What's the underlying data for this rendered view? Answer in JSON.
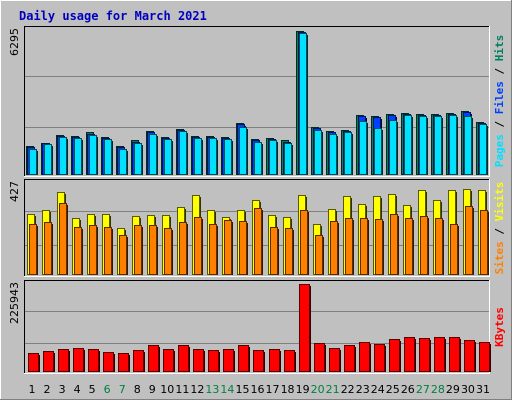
{
  "title": "Daily usage for March 2021",
  "colors": {
    "background": "#c0c0c0",
    "title": "#0000c0",
    "grid": "#808080",
    "hits": "#00805c",
    "files": "#0040ff",
    "pages": "#00e0ff",
    "visits": "#ffff00",
    "sites": "#ff8000",
    "kbytes": "#ff0000",
    "weekday_label": "#000000",
    "weekend_label": "#008040"
  },
  "chart_data": [
    {
      "type": "bar",
      "panel": "top",
      "max_label": "6295",
      "axis_label": [
        {
          "text": "Pages",
          "color": "#00e0ff"
        },
        {
          "text": " / ",
          "color": "#000000"
        },
        {
          "text": "Files",
          "color": "#0040ff"
        },
        {
          "text": " / ",
          "color": "#000000"
        },
        {
          "text": "Hits",
          "color": "#00805c"
        }
      ],
      "categories": [
        "1",
        "2",
        "3",
        "4",
        "5",
        "6",
        "7",
        "8",
        "9",
        "10",
        "11",
        "12",
        "13",
        "14",
        "15",
        "16",
        "17",
        "18",
        "19",
        "20",
        "21",
        "22",
        "23",
        "24",
        "25",
        "26",
        "27",
        "28",
        "29",
        "30",
        "31"
      ],
      "ylim": [
        0,
        6295
      ],
      "series": [
        {
          "name": "Hits",
          "values": [
            1250,
            1400,
            1750,
            1700,
            1850,
            1650,
            1250,
            1500,
            1900,
            1650,
            2000,
            1700,
            1700,
            1650,
            2250,
            1550,
            1600,
            1500,
            6250,
            2100,
            1900,
            1950,
            2600,
            2550,
            2650,
            2700,
            2650,
            2650,
            2700,
            2800,
            2300
          ]
        },
        {
          "name": "Files",
          "values": [
            1200,
            1370,
            1700,
            1650,
            1800,
            1600,
            1200,
            1450,
            1850,
            1600,
            1950,
            1650,
            1650,
            1600,
            2200,
            1500,
            1550,
            1450,
            6200,
            2050,
            1850,
            1900,
            2550,
            2500,
            2600,
            2650,
            2600,
            2600,
            2650,
            2750,
            2250
          ]
        },
        {
          "name": "Pages",
          "values": [
            1150,
            1330,
            1650,
            1600,
            1750,
            1550,
            1150,
            1400,
            1800,
            1550,
            1900,
            1600,
            1600,
            1550,
            2100,
            1450,
            1500,
            1400,
            6150,
            1950,
            1800,
            1850,
            2350,
            2050,
            2400,
            2600,
            2550,
            2550,
            2600,
            2550,
            2200
          ]
        }
      ]
    },
    {
      "type": "bar",
      "panel": "middle",
      "max_label": "427",
      "axis_label": [
        {
          "text": "Sites",
          "color": "#ff8000"
        },
        {
          "text": " / ",
          "color": "#000000"
        },
        {
          "text": "Visits",
          "color": "#ffff00"
        }
      ],
      "categories": [
        "1",
        "2",
        "3",
        "4",
        "5",
        "6",
        "7",
        "8",
        "9",
        "10",
        "11",
        "12",
        "13",
        "14",
        "15",
        "16",
        "17",
        "18",
        "19",
        "20",
        "21",
        "22",
        "23",
        "24",
        "25",
        "26",
        "27",
        "28",
        "29",
        "30",
        "31"
      ],
      "ylim": [
        0,
        427
      ],
      "series": [
        {
          "name": "Visits",
          "values": [
            283,
            300,
            385,
            265,
            283,
            283,
            220,
            275,
            280,
            280,
            317,
            370,
            300,
            270,
            300,
            348,
            280,
            270,
            370,
            238,
            305,
            368,
            330,
            368,
            375,
            325,
            395,
            350,
            395,
            400,
            395
          ]
        },
        {
          "name": "Sites",
          "values": [
            235,
            245,
            335,
            225,
            230,
            225,
            185,
            230,
            230,
            220,
            245,
            270,
            235,
            255,
            250,
            310,
            225,
            220,
            300,
            185,
            250,
            265,
            265,
            260,
            285,
            265,
            275,
            265,
            235,
            318,
            303
          ]
        }
      ]
    },
    {
      "type": "bar",
      "panel": "bottom",
      "max_label": "225943",
      "axis_label": [
        {
          "text": "KBytes",
          "color": "#ff0000"
        }
      ],
      "categories": [
        "1",
        "2",
        "3",
        "4",
        "5",
        "6",
        "7",
        "8",
        "9",
        "10",
        "11",
        "12",
        "13",
        "14",
        "15",
        "16",
        "17",
        "18",
        "19",
        "20",
        "21",
        "22",
        "23",
        "24",
        "25",
        "26",
        "27",
        "28",
        "29",
        "30",
        "31"
      ],
      "ylim": [
        0,
        225943
      ],
      "series": [
        {
          "name": "KBytes",
          "values": [
            50000,
            55000,
            59000,
            61000,
            60000,
            52000,
            48000,
            56000,
            69000,
            60000,
            69000,
            59000,
            57000,
            58000,
            69000,
            57000,
            59000,
            57000,
            225000,
            74000,
            62000,
            70000,
            78000,
            73000,
            85000,
            90000,
            88000,
            89000,
            91000,
            81000,
            78000
          ]
        }
      ]
    }
  ],
  "weekend_days": [
    "6",
    "7",
    "13",
    "14",
    "20",
    "21",
    "27",
    "28"
  ]
}
